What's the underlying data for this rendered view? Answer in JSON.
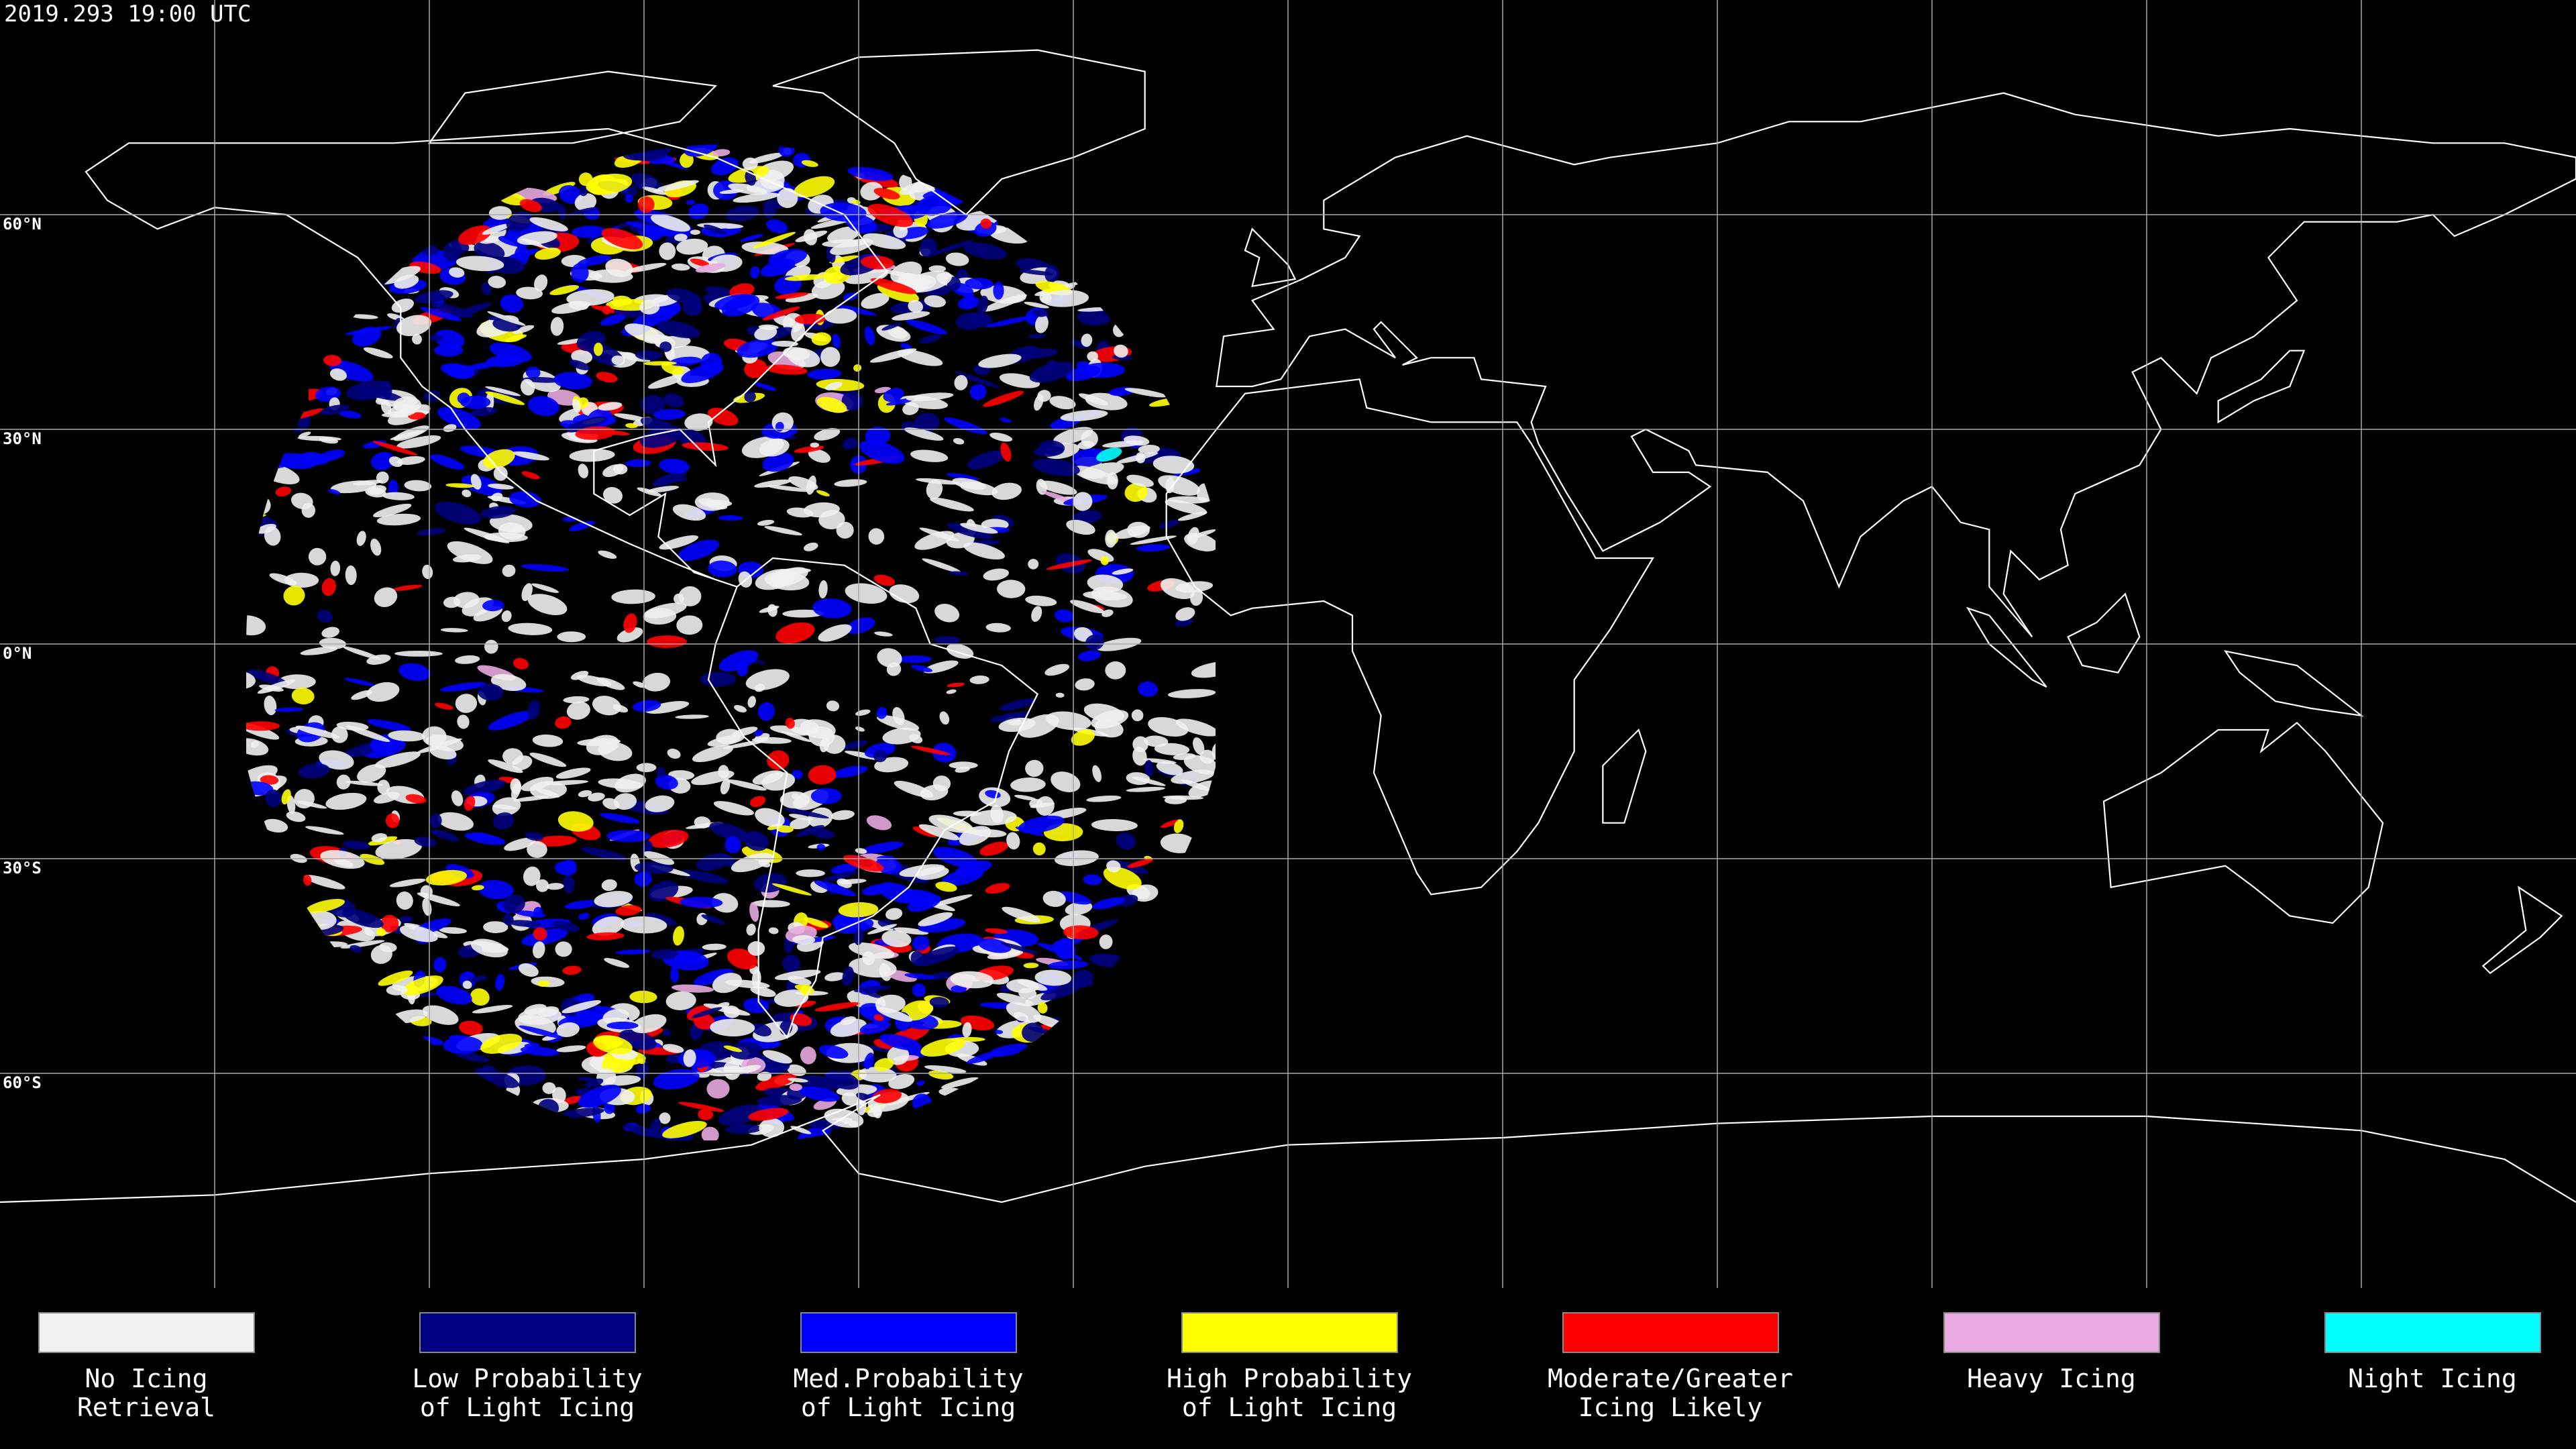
{
  "header": {
    "title": "2019.293 19:00 UTC"
  },
  "latitude_labels": [
    "60°N",
    "30°N",
    "0°N",
    "30°S",
    "60°S"
  ],
  "legend": [
    {
      "label": [
        "No Icing",
        "Retrieval"
      ],
      "color": "#f0f0f0"
    },
    {
      "label": [
        "Low Probability",
        "of Light Icing"
      ],
      "color": "#000080"
    },
    {
      "label": [
        "Med.Probability",
        "of Light Icing"
      ],
      "color": "#0000ff"
    },
    {
      "label": [
        "High Probability",
        "of Light Icing"
      ],
      "color": "#ffff00"
    },
    {
      "label": [
        "Moderate/Greater",
        "Icing Likely"
      ],
      "color": "#ff0000"
    },
    {
      "label": [
        "Heavy Icing"
      ],
      "color": "#e8a8e0"
    },
    {
      "label": [
        "Night Icing"
      ],
      "color": "#00ffff"
    }
  ]
}
